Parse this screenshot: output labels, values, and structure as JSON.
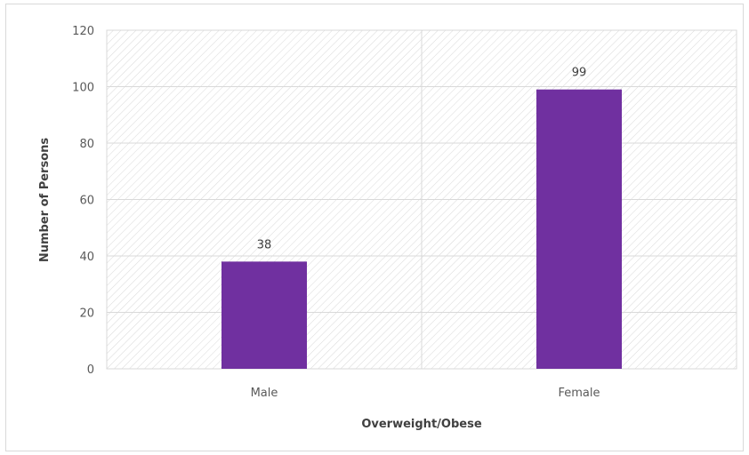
{
  "chart_data": {
    "type": "bar",
    "title": "",
    "xlabel": "Overweight/Obese",
    "ylabel": "Number of Persons",
    "categories": [
      "Male",
      "Female"
    ],
    "values": [
      38,
      99
    ],
    "data_labels": [
      "38",
      "99"
    ],
    "ylim": [
      0,
      120
    ],
    "yticks": [
      0,
      20,
      40,
      60,
      80,
      100,
      120
    ],
    "ytick_labels": [
      "0",
      "20",
      "40",
      "60",
      "80",
      "100",
      "120"
    ],
    "grid": true,
    "legend": "none",
    "plot_background": "diagonal-hatch",
    "colors": {
      "bar": "#7030a0",
      "hatch": "#d9d9d9",
      "gridline": "#d9d9d9",
      "text": "#595959"
    }
  }
}
